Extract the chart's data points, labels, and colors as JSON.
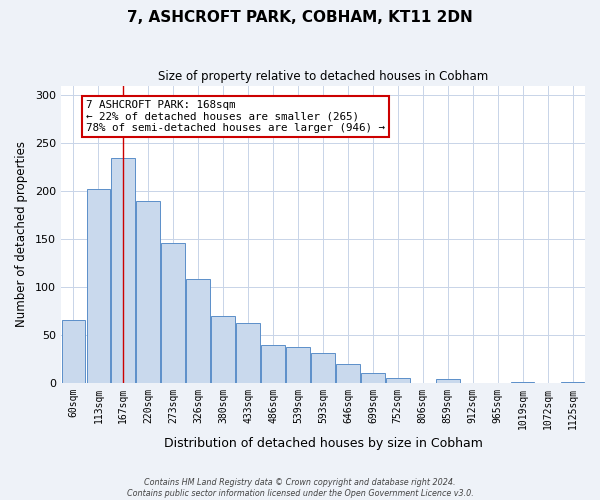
{
  "title": "7, ASHCROFT PARK, COBHAM, KT11 2DN",
  "subtitle": "Size of property relative to detached houses in Cobham",
  "xlabel": "Distribution of detached houses by size in Cobham",
  "ylabel": "Number of detached properties",
  "bin_labels": [
    "60sqm",
    "113sqm",
    "167sqm",
    "220sqm",
    "273sqm",
    "326sqm",
    "380sqm",
    "433sqm",
    "486sqm",
    "539sqm",
    "593sqm",
    "646sqm",
    "699sqm",
    "752sqm",
    "806sqm",
    "859sqm",
    "912sqm",
    "965sqm",
    "1019sqm",
    "1072sqm",
    "1125sqm"
  ],
  "bar_heights": [
    65,
    202,
    234,
    190,
    146,
    108,
    70,
    62,
    39,
    37,
    31,
    20,
    10,
    5,
    0,
    4,
    0,
    0,
    1,
    0,
    1
  ],
  "bar_color": "#c9d9ed",
  "bar_edge_color": "#5b8fc9",
  "vline_x_index": 2,
  "vline_color": "#cc0000",
  "annotation_text": "7 ASHCROFT PARK: 168sqm\n← 22% of detached houses are smaller (265)\n78% of semi-detached houses are larger (946) →",
  "annotation_box_color": "#ffffff",
  "annotation_box_edge_color": "#cc0000",
  "ylim": [
    0,
    310
  ],
  "yticks": [
    0,
    50,
    100,
    150,
    200,
    250,
    300
  ],
  "footer_line1": "Contains HM Land Registry data © Crown copyright and database right 2024.",
  "footer_line2": "Contains public sector information licensed under the Open Government Licence v3.0.",
  "bg_color": "#eef2f8",
  "plot_bg_color": "#ffffff",
  "grid_color": "#c8d4e8"
}
